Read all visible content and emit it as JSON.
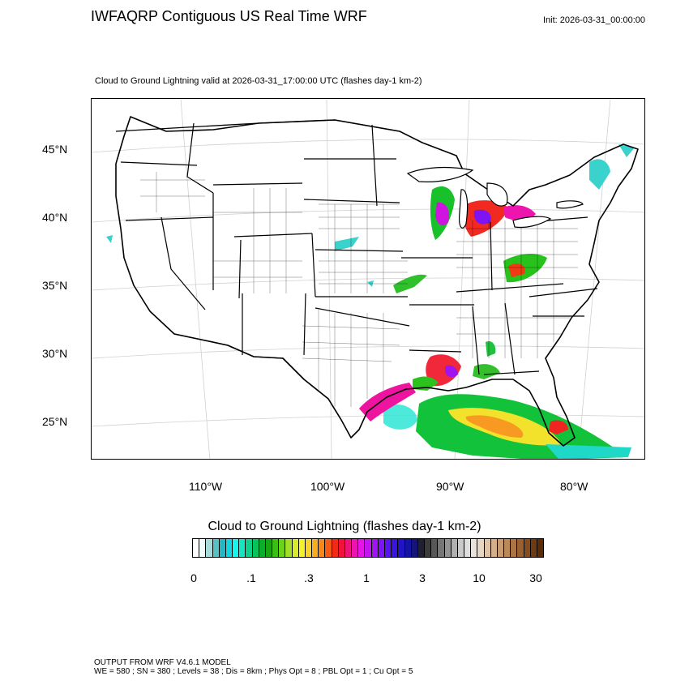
{
  "header": {
    "title": "IWFAQRP Contiguous US Real Time WRF",
    "init": "Init: 2026-03-31_00:00:00",
    "subtitle": "Cloud to Ground Lightning valid at 2026-03-31_17:00:00 UTC   (flashes day-1 km-2)"
  },
  "map": {
    "projection": "lambert-conformal",
    "region": "Contiguous United States",
    "lat_labels": [
      "45°N",
      "40°N",
      "35°N",
      "30°N",
      "25°N"
    ],
    "lon_labels": [
      "110°W",
      "100°W",
      "90°W",
      "80°W"
    ],
    "colors": {
      "land": "#ffffff",
      "boundaries": "#000000",
      "graticule": "#d0d0d0"
    }
  },
  "legend": {
    "title": "Cloud to Ground Lightning  (flashes day-1 km-2)",
    "tick_labels": [
      "0",
      ".1",
      ".3",
      "1",
      "3",
      "10",
      "30"
    ],
    "colors": [
      "#ffffff",
      "#f2fbfb",
      "#a6dcdc",
      "#56c2c6",
      "#23b8c4",
      "#14d4e0",
      "#16f4ee",
      "#14e6c4",
      "#0ed08a",
      "#09c25a",
      "#0aae2a",
      "#17a514",
      "#3bbf14",
      "#6bd21c",
      "#a4df28",
      "#d8ea2c",
      "#f4f02c",
      "#f8d22a",
      "#f8ae22",
      "#f8861a",
      "#f45a12",
      "#f02a14",
      "#f0143c",
      "#ee147a",
      "#ec14b0",
      "#e614e6",
      "#c214f0",
      "#a014f4",
      "#7c14f4",
      "#5814f0",
      "#3a14dc",
      "#2014c4",
      "#1414a4",
      "#14147a",
      "#202030",
      "#3c3c3c",
      "#585858",
      "#767676",
      "#949494",
      "#b0b0b0",
      "#cacaca",
      "#dedede",
      "#e8e4dc",
      "#e6d6c2",
      "#dec4a6",
      "#d4b08a",
      "#c89c70",
      "#bb8858",
      "#ac7444",
      "#9a6030",
      "#864c20",
      "#703a12",
      "#5c2c08"
    ]
  },
  "footer": {
    "line1": "OUTPUT FROM WRF V4.6.1 MODEL",
    "line2": "WE = 580 ; SN = 380 ; Levels = 38 ; Dis = 8km ; Phys Opt = 8 ; PBL Opt = 1 ; Cu Opt = 5"
  }
}
